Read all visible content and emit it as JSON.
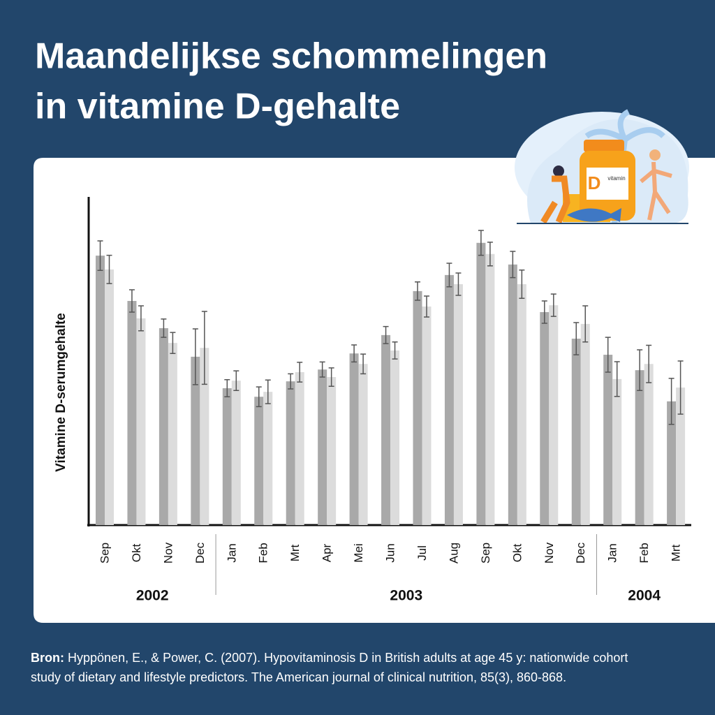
{
  "chart_data": {
    "type": "bar",
    "title": [
      "Maandelijkse schommelingen",
      "in vitamine D-gehalte"
    ],
    "y_label": "Vitamine D-serumgehalte",
    "groups": [
      {
        "name": "2002",
        "categories": [
          "Sep",
          "Okt",
          "Nov",
          "Dec"
        ]
      },
      {
        "name": "2003",
        "categories": [
          "Jan",
          "Feb",
          "Mrt",
          "Apr",
          "Mei",
          "Jun",
          "Jul",
          "Aug",
          "Sep",
          "Okt",
          "Nov",
          "Dec"
        ]
      },
      {
        "name": "2004",
        "categories": [
          "Jan",
          "Feb",
          "Mrt"
        ]
      }
    ],
    "ylim": [
      0,
      100
    ],
    "series": [
      {
        "color": "#a9a9a9",
        "values": [
          82.1,
          68.3,
          60.0,
          51.3,
          41.7,
          39.1,
          43.8,
          47.4,
          52.3,
          57.9,
          71.3,
          76.2,
          86.0,
          79.4,
          64.9,
          56.8,
          51.9,
          47.2,
          37.7
        ],
        "errors": [
          4.5,
          3.4,
          2.8,
          8.5,
          2.6,
          3.0,
          2.3,
          2.3,
          2.6,
          2.6,
          2.8,
          3.6,
          3.8,
          4.0,
          3.4,
          4.9,
          5.3,
          6.2,
          7.0
        ]
      },
      {
        "color": "#dcdcdc",
        "values": [
          77.9,
          63.0,
          55.5,
          54.0,
          44.0,
          40.6,
          46.6,
          45.1,
          49.1,
          53.2,
          66.6,
          73.4,
          82.6,
          73.4,
          67.0,
          61.3,
          44.5,
          49.1,
          41.9
        ],
        "errors": [
          4.3,
          3.8,
          3.2,
          11.1,
          3.0,
          3.6,
          3.0,
          2.8,
          3.0,
          2.6,
          3.2,
          3.4,
          3.6,
          4.3,
          3.4,
          5.5,
          5.3,
          5.7,
          8.1
        ]
      }
    ]
  },
  "source": {
    "label": "Bron:",
    "lines": [
      "Hyppönen, E., & Power, C. (2007). Hypovitaminosis D in British adults at age 45 y: nationwide cohort",
      "study of dietary and lifestyle predictors. The American journal of clinical nutrition, 85(3), 860-868."
    ]
  },
  "illustration": {
    "bottle_letter": "D",
    "bottle_label": "vitamin"
  }
}
